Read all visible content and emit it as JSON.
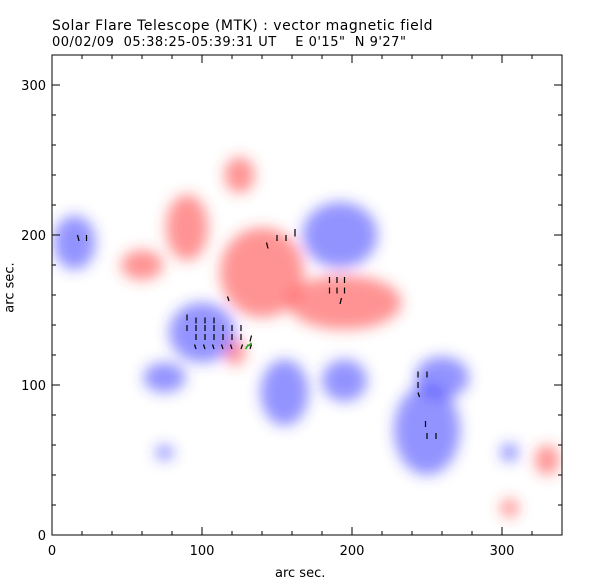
{
  "title_line1": "Solar Flare Telescope (MTK) : vector magnetic field",
  "title_line2": "00/02/09  05:38:25-05:39:31 UT    E 0'15\"  N 9'27\"",
  "chart_data": {
    "type": "heatmap",
    "title": "Solar Flare Telescope (MTK) : vector magnetic field",
    "subtitle": "00/02/09  05:38:25-05:39:31 UT    E 0'15\"  N 9'27\"",
    "xlabel": "arc sec.",
    "ylabel": "arc sec.",
    "xlim": [
      0,
      340
    ],
    "ylim": [
      0,
      320
    ],
    "xticks": [
      "0",
      "100",
      "200",
      "300"
    ],
    "yticks": [
      "0",
      "100",
      "200",
      "300"
    ],
    "colors": {
      "positive": "#ff3b3b",
      "negative": "#3b3bff",
      "transverse": "#000000",
      "highlight": "#22aa22"
    },
    "positive_regions": [
      {
        "x": 90,
        "y": 205,
        "rx": 14,
        "ry": 22
      },
      {
        "x": 125,
        "y": 240,
        "rx": 10,
        "ry": 12
      },
      {
        "x": 60,
        "y": 180,
        "rx": 14,
        "ry": 10
      },
      {
        "x": 140,
        "y": 175,
        "rx": 28,
        "ry": 30
      },
      {
        "x": 195,
        "y": 155,
        "rx": 38,
        "ry": 18
      },
      {
        "x": 122,
        "y": 122,
        "rx": 7,
        "ry": 9
      },
      {
        "x": 330,
        "y": 50,
        "rx": 8,
        "ry": 10
      },
      {
        "x": 305,
        "y": 18,
        "rx": 6,
        "ry": 6
      }
    ],
    "negative_regions": [
      {
        "x": 192,
        "y": 200,
        "rx": 25,
        "ry": 22
      },
      {
        "x": 100,
        "y": 135,
        "rx": 22,
        "ry": 20
      },
      {
        "x": 195,
        "y": 103,
        "rx": 15,
        "ry": 14
      },
      {
        "x": 250,
        "y": 70,
        "rx": 22,
        "ry": 30
      },
      {
        "x": 260,
        "y": 105,
        "rx": 18,
        "ry": 14
      },
      {
        "x": 15,
        "y": 195,
        "rx": 14,
        "ry": 18
      },
      {
        "x": 75,
        "y": 105,
        "rx": 14,
        "ry": 10
      },
      {
        "x": 155,
        "y": 95,
        "rx": 16,
        "ry": 22
      },
      {
        "x": 305,
        "y": 55,
        "rx": 6,
        "ry": 6
      },
      {
        "x": 75,
        "y": 55,
        "rx": 6,
        "ry": 5
      }
    ],
    "transverse_vectors": [
      {
        "x": 18,
        "y": 196,
        "dx": -1,
        "dy": 4
      },
      {
        "x": 23,
        "y": 196,
        "dx": 0,
        "dy": 4
      },
      {
        "x": 144,
        "y": 191,
        "dx": -1,
        "dy": 4
      },
      {
        "x": 150,
        "y": 196,
        "dx": 0,
        "dy": 4
      },
      {
        "x": 156,
        "y": 196,
        "dx": 0,
        "dy": 4
      },
      {
        "x": 162,
        "y": 199,
        "dx": 0,
        "dy": 5
      },
      {
        "x": 185,
        "y": 168,
        "dx": 0,
        "dy": 4
      },
      {
        "x": 190,
        "y": 168,
        "dx": 0,
        "dy": 4
      },
      {
        "x": 195,
        "y": 168,
        "dx": 0,
        "dy": 4
      },
      {
        "x": 185,
        "y": 161,
        "dx": 0,
        "dy": 4
      },
      {
        "x": 190,
        "y": 161,
        "dx": 0,
        "dy": 4
      },
      {
        "x": 195,
        "y": 161,
        "dx": 0,
        "dy": 4
      },
      {
        "x": 192,
        "y": 154,
        "dx": 1,
        "dy": 4
      },
      {
        "x": 118,
        "y": 156,
        "dx": -1,
        "dy": 3
      },
      {
        "x": 90,
        "y": 143,
        "dx": 0,
        "dy": 4
      },
      {
        "x": 96,
        "y": 141,
        "dx": 0,
        "dy": 4
      },
      {
        "x": 102,
        "y": 141,
        "dx": 0,
        "dy": 4
      },
      {
        "x": 108,
        "y": 141,
        "dx": 0,
        "dy": 4
      },
      {
        "x": 90,
        "y": 136,
        "dx": 0,
        "dy": 4
      },
      {
        "x": 96,
        "y": 136,
        "dx": 0,
        "dy": 4
      },
      {
        "x": 102,
        "y": 136,
        "dx": 0,
        "dy": 4
      },
      {
        "x": 108,
        "y": 136,
        "dx": 0,
        "dy": 4
      },
      {
        "x": 114,
        "y": 136,
        "dx": 0,
        "dy": 4
      },
      {
        "x": 120,
        "y": 136,
        "dx": 0,
        "dy": 4
      },
      {
        "x": 126,
        "y": 136,
        "dx": 0,
        "dy": 4
      },
      {
        "x": 96,
        "y": 130,
        "dx": 0,
        "dy": 4
      },
      {
        "x": 102,
        "y": 130,
        "dx": 0,
        "dy": 4
      },
      {
        "x": 108,
        "y": 130,
        "dx": 0,
        "dy": 4
      },
      {
        "x": 114,
        "y": 130,
        "dx": 0,
        "dy": 4
      },
      {
        "x": 120,
        "y": 130,
        "dx": 0,
        "dy": 4
      },
      {
        "x": 126,
        "y": 130,
        "dx": 0,
        "dy": 4
      },
      {
        "x": 132,
        "y": 129,
        "dx": 1,
        "dy": 4
      },
      {
        "x": 96,
        "y": 124,
        "dx": -1,
        "dy": 3
      },
      {
        "x": 102,
        "y": 124,
        "dx": -1,
        "dy": 3
      },
      {
        "x": 108,
        "y": 124,
        "dx": -1,
        "dy": 3
      },
      {
        "x": 114,
        "y": 124,
        "dx": -1,
        "dy": 3
      },
      {
        "x": 120,
        "y": 124,
        "dx": -1,
        "dy": 3
      },
      {
        "x": 126,
        "y": 124,
        "dx": 1,
        "dy": 3
      },
      {
        "x": 132,
        "y": 124,
        "dx": 1,
        "dy": 3
      },
      {
        "x": 244,
        "y": 105,
        "dx": 0,
        "dy": 4
      },
      {
        "x": 250,
        "y": 105,
        "dx": 0,
        "dy": 4
      },
      {
        "x": 244,
        "y": 98,
        "dx": 0,
        "dy": 4
      },
      {
        "x": 245,
        "y": 92,
        "dx": -1,
        "dy": 3
      },
      {
        "x": 249,
        "y": 72,
        "dx": 0,
        "dy": 4
      },
      {
        "x": 250,
        "y": 64,
        "dx": 0,
        "dy": 4
      },
      {
        "x": 256,
        "y": 64,
        "dx": 0,
        "dy": 4
      }
    ],
    "highlight_vectors": [
      {
        "x": 129,
        "y": 124,
        "dx": 2,
        "dy": 3
      },
      {
        "x": 131,
        "y": 126,
        "dx": 2,
        "dy": 2
      }
    ]
  }
}
